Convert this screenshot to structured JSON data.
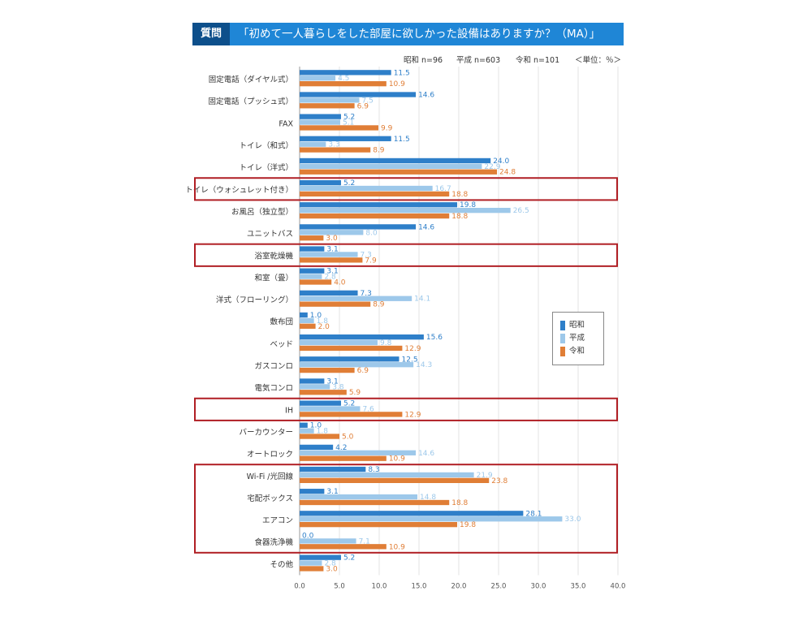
{
  "header": {
    "badge": "質問",
    "title": "「初めて一人暮らしをした部屋に欲しかった設備はありますか？（MA）」"
  },
  "meta": {
    "showa_n": "昭和 n=96",
    "heisei_n": "平成 n=603",
    "reiwa_n": "令和 n=101",
    "unit": "＜単位：％＞"
  },
  "legend": {
    "title": "",
    "items": [
      "昭和",
      "平成",
      "令和"
    ]
  },
  "colors": {
    "showa": "#2e7fc9",
    "heisei": "#9dc8ea",
    "reiwa": "#e07e36",
    "highlight_border": "#b01e24",
    "header": "#1f86d6",
    "badge": "#0d4f8b"
  },
  "chart_data": {
    "type": "bar",
    "orientation": "horizontal",
    "title": "「初めて一人暮らしをした部屋に欲しかった設備はありますか？（MA）」",
    "xlabel": "",
    "ylabel": "",
    "xlim": [
      0,
      40
    ],
    "xticks": [
      "0.0",
      "5.0",
      "10.0",
      "15.0",
      "20.0",
      "25.0",
      "30.0",
      "35.0",
      "40.0"
    ],
    "grid": true,
    "legend_position": "right",
    "categories": [
      "固定電話（ダイヤル式）",
      "固定電話（プッシュ式）",
      "FAX",
      "トイレ（和式）",
      "トイレ（洋式）",
      "トイレ（ウォシュレット付き）",
      "お風呂（独立型）",
      "ユニットバス",
      "浴室乾燥機",
      "和室（畳）",
      "洋式（フローリング）",
      "敷布団",
      "ベッド",
      "ガスコンロ",
      "電気コンロ",
      "IH",
      "バーカウンター",
      "オートロック",
      "Wi-Fi /光回線",
      "宅配ボックス",
      "エアコン",
      "食器洗浄機",
      "その他"
    ],
    "series": [
      {
        "name": "昭和",
        "values": [
          11.5,
          14.6,
          5.2,
          11.5,
          24.0,
          5.2,
          19.8,
          14.6,
          3.1,
          3.1,
          7.3,
          1.0,
          15.6,
          12.5,
          3.1,
          5.2,
          1.0,
          4.2,
          8.3,
          3.1,
          28.1,
          0.0,
          5.2
        ],
        "labels": [
          "11.5",
          "14.6",
          "5.2",
          "11.5",
          "24.0",
          "5.2",
          "19.8",
          "14.6",
          "3.1",
          "3.1",
          "7.3",
          "1.0",
          "15.6",
          "12.5",
          "3.1",
          "5.2",
          "1.0",
          "4.2",
          "8.3",
          "3.1",
          "28.1",
          "0.0",
          "5.2"
        ]
      },
      {
        "name": "平成",
        "values": [
          4.5,
          7.5,
          5.1,
          3.3,
          22.9,
          16.7,
          26.5,
          8.0,
          7.3,
          2.8,
          14.1,
          1.8,
          9.8,
          14.3,
          3.8,
          7.6,
          1.8,
          14.6,
          21.9,
          14.8,
          33.0,
          7.1,
          2.8
        ],
        "labels": [
          "4.5",
          "7.5",
          "5.1",
          "3.3",
          "22.9",
          "16.7",
          "26.5",
          "8.0",
          "7.3",
          "2.8",
          "14.1",
          "1.8",
          "9.8",
          "14.3",
          "3.8",
          "7.6",
          "1.8",
          "14.6",
          "21.9",
          "14.8",
          "33.0",
          "7.1",
          "2.8"
        ]
      },
      {
        "name": "令和",
        "values": [
          10.9,
          6.9,
          9.9,
          8.9,
          24.8,
          18.8,
          18.8,
          3.0,
          7.9,
          4.0,
          8.9,
          2.0,
          12.9,
          6.9,
          5.9,
          12.9,
          5.0,
          10.9,
          23.8,
          18.8,
          19.8,
          10.9,
          3.0
        ],
        "labels": [
          "10.9",
          "6.9",
          "9.9",
          "8.9",
          "24.8",
          "18.8",
          "18.8",
          "3.0",
          "7.9",
          "4.0",
          "8.9",
          "2.0",
          "12.9",
          "6.9",
          "5.9",
          "12.9",
          "5.0",
          "10.9",
          "23.8",
          "18.8",
          "19.8",
          "10.9",
          "3.0"
        ]
      }
    ],
    "highlight_groups": [
      [
        "トイレ（ウォシュレット付き）"
      ],
      [
        "浴室乾燥機"
      ],
      [
        "IH"
      ],
      [
        "Wi-Fi /光回線",
        "宅配ボックス",
        "エアコン",
        "食器洗浄機"
      ]
    ]
  }
}
